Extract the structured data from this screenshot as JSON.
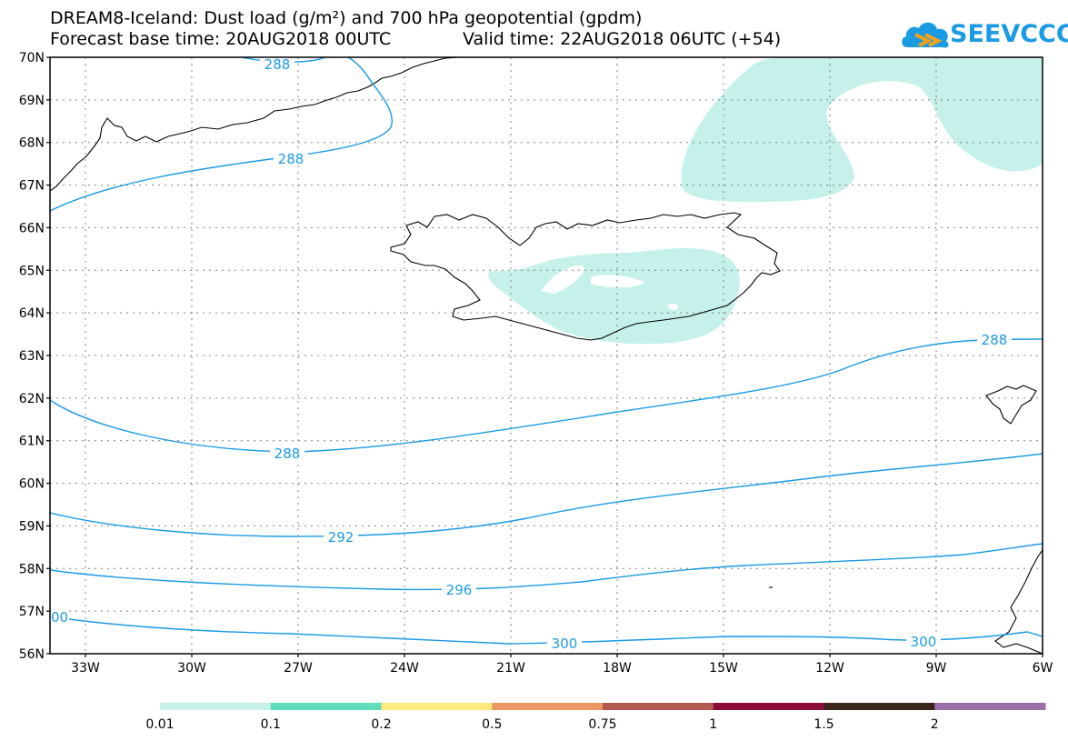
{
  "title": {
    "line1": "DREAM8-Iceland: Dust load (g/m²) and 700 hPa geopotential (gpdm)",
    "line2_base": "Forecast base time: 20AUG2018 00UTC",
    "line2_valid": "Valid time: 22AUG2018 06UTC (+54)"
  },
  "logo": {
    "text": "SEEVCCC",
    "icon": "cloud-logo-icon"
  },
  "colors": {
    "contour": "#1a9be4",
    "dust_fill": "#c6f1ea",
    "coast": "#000000",
    "gridline": "#808080"
  },
  "map": {
    "lat_labels": [
      "70N",
      "69N",
      "68N",
      "67N",
      "66N",
      "65N",
      "64N",
      "63N",
      "62N",
      "61N",
      "60N",
      "59N",
      "58N",
      "57N",
      "56N"
    ],
    "lon_labels": [
      "33W",
      "30W",
      "27W",
      "24W",
      "21W",
      "18W",
      "15W",
      "12W",
      "9W",
      "6W"
    ],
    "lat_range": [
      56,
      70
    ],
    "lon_range": [
      -34.0,
      -6.0
    ],
    "grid": "dotted"
  },
  "contours": {
    "labels": [
      "288",
      "288",
      "288",
      "288",
      "292",
      "296",
      "300",
      "300",
      "00"
    ]
  },
  "colorbar": {
    "colors": [
      "#c6f1ea",
      "#5fdcbc",
      "#fde97d",
      "#f8e57f",
      "#ec9668",
      "#b35a4f",
      "#8b0d37",
      "#3b261b",
      "#9a6ea6"
    ],
    "labels": [
      "0.01",
      "0.1",
      "0.2",
      "0.5",
      "0.75",
      "1",
      "1.5",
      "2"
    ]
  }
}
